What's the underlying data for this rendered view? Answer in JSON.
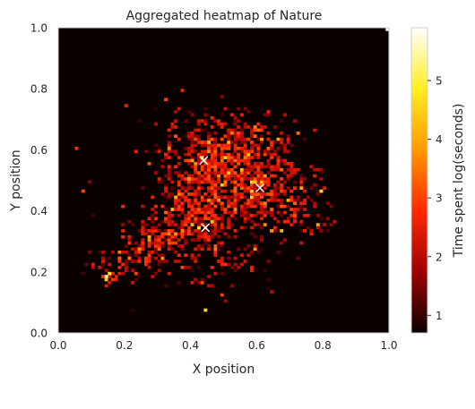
{
  "chart_data": {
    "type": "heatmap",
    "title": "Aggregated heatmap of Nature",
    "xlabel": "X position",
    "ylabel": "Y position",
    "xlim": [
      0.0,
      1.0
    ],
    "ylim": [
      0.0,
      1.0
    ],
    "x_ticks": [
      "0.0",
      "0.2",
      "0.4",
      "0.6",
      "0.8",
      "1.0"
    ],
    "y_ticks": [
      "0.0",
      "0.2",
      "0.4",
      "0.6",
      "0.8",
      "1.0"
    ],
    "grid": false,
    "grid_bins": 100,
    "colorbar": {
      "label": "Time spent log(seconds)",
      "min": 0.7,
      "max": 5.9,
      "ticks": [
        "1",
        "2",
        "3",
        "4",
        "5"
      ],
      "colormap": "hot",
      "stops": [
        "#0b0000",
        "#a00000",
        "#ff2800",
        "#ff9900",
        "#ffee22",
        "#ffffff"
      ]
    },
    "background_color": "#0b0000",
    "marker_color": "#ffffff",
    "markers": [
      {
        "x": 0.44,
        "y": 0.565
      },
      {
        "x": 0.61,
        "y": 0.475
      },
      {
        "x": 0.445,
        "y": 0.345
      }
    ],
    "hotspots": [
      {
        "x": 0.14,
        "y": 0.185,
        "value": 5.6
      },
      {
        "x": 0.15,
        "y": 0.19,
        "value": 4.8
      },
      {
        "x": 0.145,
        "y": 0.175,
        "value": 4.4
      },
      {
        "x": 0.995,
        "y": 0.995,
        "value": 5.8
      },
      {
        "x": 0.43,
        "y": 0.58,
        "value": 4.5
      },
      {
        "x": 0.45,
        "y": 0.62,
        "value": 4.2
      },
      {
        "x": 0.4,
        "y": 0.56,
        "value": 4.0
      },
      {
        "x": 0.59,
        "y": 0.49,
        "value": 4.3
      },
      {
        "x": 0.62,
        "y": 0.51,
        "value": 3.9
      },
      {
        "x": 0.73,
        "y": 0.47,
        "value": 4.0
      },
      {
        "x": 0.79,
        "y": 0.46,
        "value": 4.6
      },
      {
        "x": 0.425,
        "y": 0.34,
        "value": 4.7
      },
      {
        "x": 0.4,
        "y": 0.35,
        "value": 4.1
      },
      {
        "x": 0.37,
        "y": 0.33,
        "value": 3.6
      },
      {
        "x": 0.46,
        "y": 0.36,
        "value": 4.3
      },
      {
        "x": 0.44,
        "y": 0.075,
        "value": 4.6
      },
      {
        "x": 0.33,
        "y": 0.6,
        "value": 3.7
      },
      {
        "x": 0.35,
        "y": 0.445,
        "value": 4.1
      },
      {
        "x": 0.39,
        "y": 0.5,
        "value": 4.0
      },
      {
        "x": 0.5,
        "y": 0.49,
        "value": 3.5
      },
      {
        "x": 0.67,
        "y": 0.33,
        "value": 4.2
      },
      {
        "x": 0.64,
        "y": 0.33,
        "value": 3.8
      },
      {
        "x": 0.27,
        "y": 0.3,
        "value": 3.7
      },
      {
        "x": 0.3,
        "y": 0.27,
        "value": 3.4
      },
      {
        "x": 0.24,
        "y": 0.27,
        "value": 3.6
      },
      {
        "x": 0.56,
        "y": 0.58,
        "value": 3.5
      },
      {
        "x": 0.6,
        "y": 0.66,
        "value": 3.4
      },
      {
        "x": 0.52,
        "y": 0.65,
        "value": 3.6
      },
      {
        "x": 0.18,
        "y": 0.24,
        "value": 3.2
      },
      {
        "x": 0.21,
        "y": 0.24,
        "value": 3.5
      },
      {
        "x": 0.71,
        "y": 0.42,
        "value": 3.3
      },
      {
        "x": 0.53,
        "y": 0.4,
        "value": 3.6
      },
      {
        "x": 0.48,
        "y": 0.43,
        "value": 3.7
      }
    ]
  }
}
